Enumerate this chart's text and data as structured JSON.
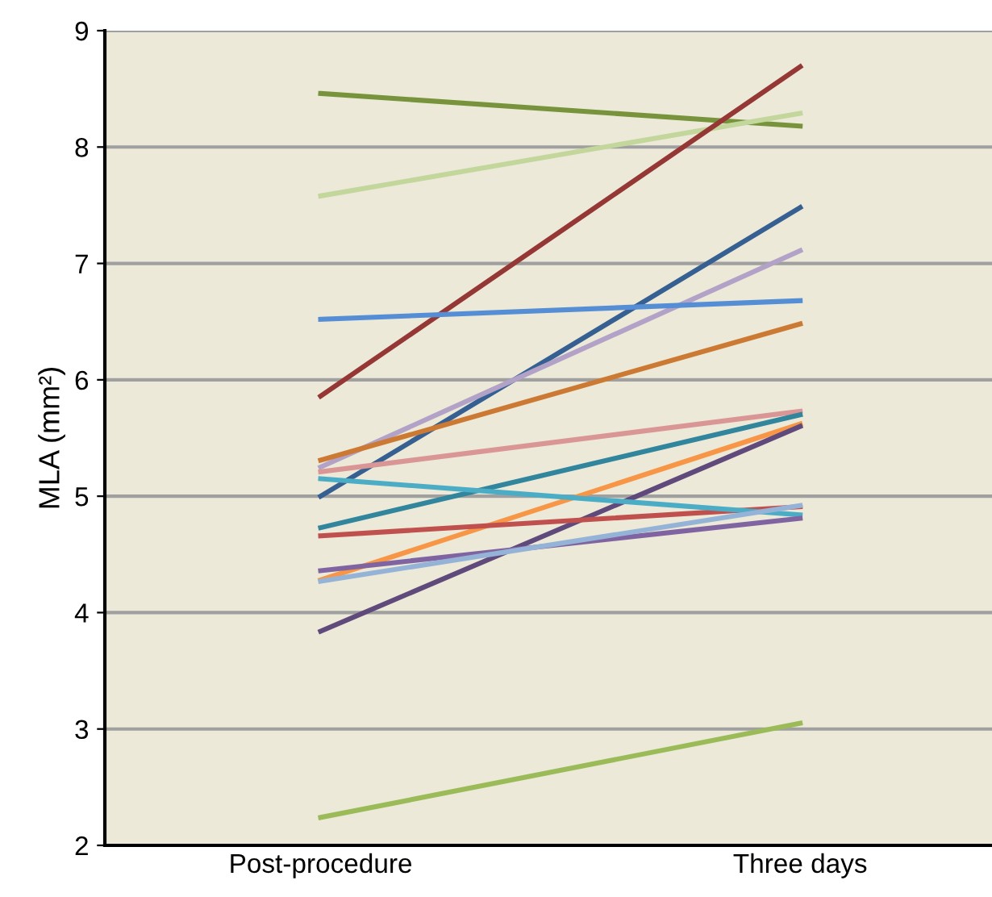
{
  "chart_data": {
    "type": "line",
    "ylabel": "MLA (mm²)",
    "categories": [
      "Post-procedure",
      "Three days"
    ],
    "ylim": [
      2,
      9
    ],
    "yticks": [
      2,
      3,
      4,
      5,
      6,
      7,
      8,
      9
    ],
    "grid": "y",
    "marker": "none",
    "line_style": "solid",
    "series": [
      {
        "color": "#77933c",
        "values": [
          8.46,
          8.18
        ]
      },
      {
        "color": "#c3d69b",
        "values": [
          7.58,
          8.29
        ]
      },
      {
        "color": "#953735",
        "values": [
          5.86,
          8.69
        ]
      },
      {
        "color": "#376092",
        "values": [
          5.0,
          7.48
        ]
      },
      {
        "color": "#b3a2c7",
        "values": [
          5.25,
          7.11
        ]
      },
      {
        "color": "#558ed5",
        "values": [
          6.52,
          6.68
        ]
      },
      {
        "color": "#cc7a33",
        "values": [
          5.31,
          6.48
        ]
      },
      {
        "color": "#d99694",
        "values": [
          5.21,
          5.73
        ]
      },
      {
        "color": "#31859c",
        "values": [
          4.73,
          5.7
        ]
      },
      {
        "color": "#f79646",
        "values": [
          4.28,
          5.62
        ]
      },
      {
        "color": "#604a7b",
        "values": [
          3.84,
          5.6
        ]
      },
      {
        "color": "#c0504d",
        "values": [
          4.66,
          4.91
        ]
      },
      {
        "color": "#4bacc6",
        "values": [
          5.15,
          4.84
        ]
      },
      {
        "color": "#8064a2",
        "values": [
          4.36,
          4.81
        ]
      },
      {
        "color": "#95b3d7",
        "values": [
          4.27,
          4.92
        ]
      },
      {
        "color": "#9bbb59",
        "values": [
          2.24,
          3.05
        ]
      }
    ]
  }
}
